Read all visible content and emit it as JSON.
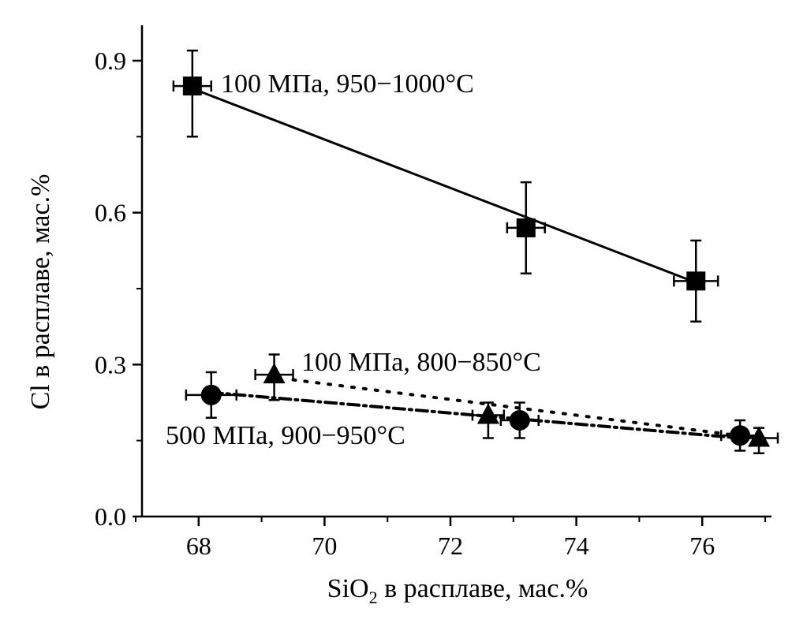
{
  "chart_data": {
    "type": "scatter",
    "title": "",
    "xlabel_main": "SiO",
    "xlabel_sub": "2",
    "xlabel_rest": " в расплаве, мас.%",
    "ylabel": "Cl в расплаве, мас.%",
    "xlim": [
      67.1,
      77.1
    ],
    "ylim": [
      0.0,
      0.97
    ],
    "xticks": [
      68,
      70,
      72,
      74,
      76
    ],
    "xtick_labels": [
      "68",
      "70",
      "72",
      "74",
      "76"
    ],
    "yticks": [
      0.0,
      0.3,
      0.6,
      0.9
    ],
    "ytick_labels": [
      "0.0",
      "0.3",
      "0.6",
      "0.9"
    ],
    "grid": false,
    "series": [
      {
        "name": "100 МПа, 950–1000°C",
        "label": "100 МПа, 950−1000°C",
        "marker": "square",
        "line": "solid",
        "x": [
          67.9,
          73.2,
          75.9
        ],
        "y": [
          0.85,
          0.57,
          0.465
        ],
        "xerr": [
          0.3,
          0.3,
          0.35
        ],
        "yerr_low": [
          0.75,
          0.48,
          0.385
        ],
        "yerr_high": [
          0.92,
          0.66,
          0.545
        ],
        "fit": [
          [
            67.9,
            0.845
          ],
          [
            75.9,
            0.462
          ]
        ]
      },
      {
        "name": "100 МПа, 800–850°C",
        "label": "100 МПа, 800−850°C",
        "marker": "triangle",
        "line": "dotted",
        "x": [
          69.2,
          72.6,
          76.9
        ],
        "y": [
          0.28,
          0.2,
          0.155
        ],
        "xerr": [
          0.3,
          0.25,
          0.3
        ],
        "yerr_low": [
          0.23,
          0.155,
          0.125
        ],
        "yerr_high": [
          0.32,
          0.225,
          0.175
        ],
        "fit": [
          [
            69.5,
            0.27
          ],
          [
            76.9,
            0.155
          ]
        ]
      },
      {
        "name": "500 МПа, 900–950°C",
        "label": "500 МПа, 900−950°C",
        "marker": "circle",
        "line": "dashdot",
        "x": [
          68.2,
          73.1,
          76.6
        ],
        "y": [
          0.24,
          0.19,
          0.16
        ],
        "xerr": [
          0.4,
          0.3,
          0.3
        ],
        "yerr_low": [
          0.195,
          0.155,
          0.13
        ],
        "yerr_high": [
          0.285,
          0.225,
          0.19
        ],
        "fit": [
          [
            68.2,
            0.245
          ],
          [
            76.6,
            0.155
          ]
        ]
      }
    ]
  }
}
